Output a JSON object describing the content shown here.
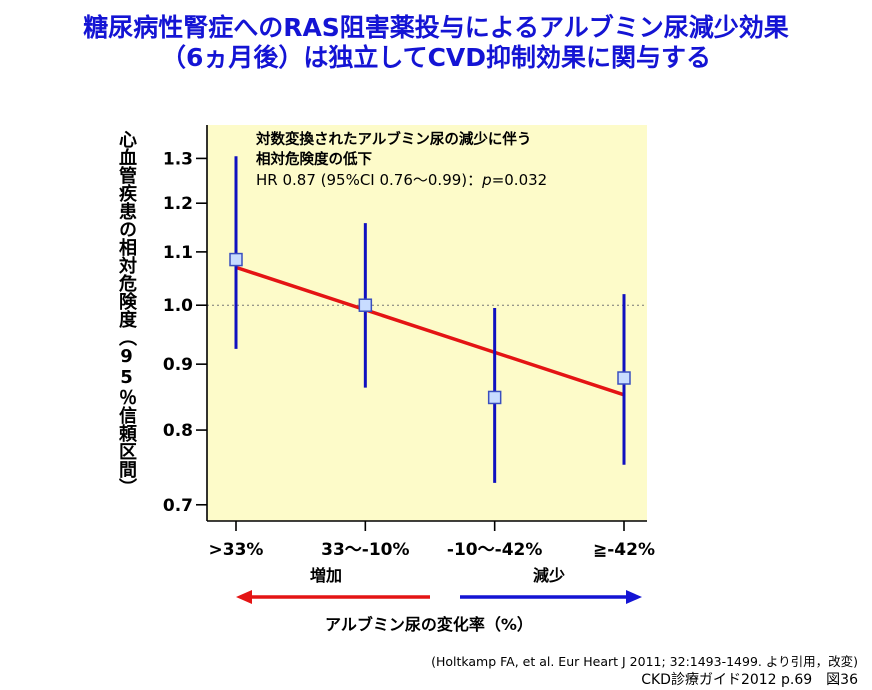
{
  "title": {
    "line1": "糖尿病性腎症へのRAS阻害薬投与によるアルブミン尿減少効果",
    "line2": "（6ヵ月後）は独立してCVD抑制効果に関与する"
  },
  "chart_data": {
    "type": "scatter",
    "ylabel": "心血管疾患の相対危険度（95％信頼区間）",
    "y_scale": "log",
    "ylim": [
      0.68,
      1.38
    ],
    "y_ticks": [
      "0.7",
      "0.8",
      "0.9",
      "1.0",
      "1.1",
      "1.2",
      "1.3"
    ],
    "categories": [
      ">33%",
      "33～-10%",
      "-10～-42%",
      "≧-42%"
    ],
    "points": [
      {
        "category": ">33%",
        "hr": 1.085,
        "ci_low": 0.925,
        "ci_high": 1.305
      },
      {
        "category": "33～-10%",
        "hr": 1.0,
        "ci_low": 0.863,
        "ci_high": 1.158
      },
      {
        "category": "-10～-42%",
        "hr": 0.848,
        "ci_low": 0.728,
        "ci_high": 0.995
      },
      {
        "category": "≧-42%",
        "hr": 0.878,
        "ci_low": 0.752,
        "ci_high": 1.02
      }
    ],
    "trend_line": {
      "from_category": ">33%",
      "from_y": 1.07,
      "to_category": "≧-42%",
      "to_y": 0.852,
      "color": "#e41414"
    },
    "reference_line": 1.0,
    "marker_color": "#c8dcff",
    "errorbar_color": "#1010c0",
    "plot_background": "#fdfbc9",
    "annotation": {
      "line1": "対数変換されたアルブミン尿の減少に伴う",
      "line2": "相対危険度の低下",
      "line3_prefix": "HR 0.87 (95%CI 0.76～0.99)：",
      "line3_p": "p",
      "line3_suffix": "=0.032"
    },
    "arrows": {
      "increase_label": "増加",
      "increase_color": "#e41414",
      "decrease_label": "減少",
      "decrease_color": "#1414d4"
    },
    "x_caption": "アルブミン尿の変化率（%）"
  },
  "citation": {
    "line1": "(Holtkamp FA, et al. Eur Heart J 2011; 32:1493-1499. より引用，改変)",
    "line2": "CKD診療ガイド2012 p.69　図36"
  }
}
